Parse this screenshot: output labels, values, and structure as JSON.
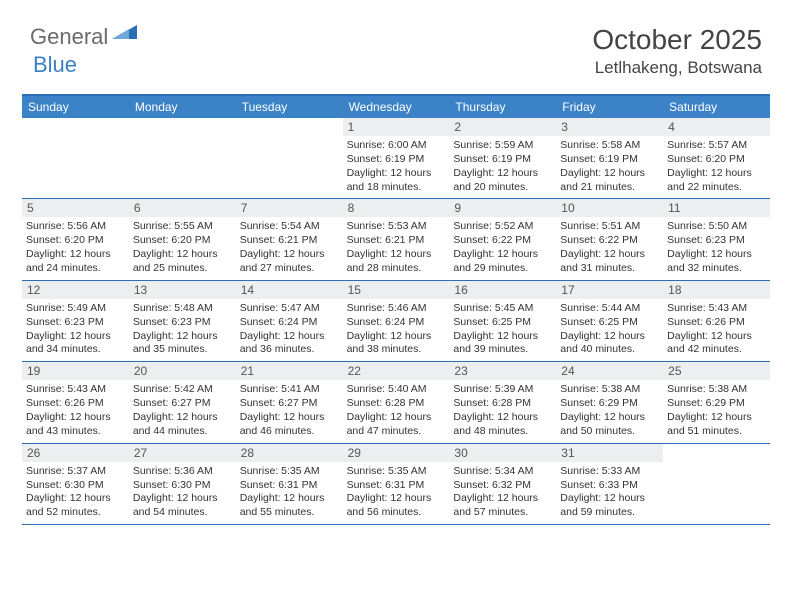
{
  "logo": {
    "general": "General",
    "blue": "Blue"
  },
  "title": "October 2025",
  "location": "Letlhakeng, Botswana",
  "colors": {
    "header_bg": "#3b82c7",
    "border": "#2a6fb5",
    "daybar": "#eceef0",
    "logo_gray": "#6b6b6b",
    "logo_blue": "#3b7fc4"
  },
  "weekdays": [
    "Sunday",
    "Monday",
    "Tuesday",
    "Wednesday",
    "Thursday",
    "Friday",
    "Saturday"
  ],
  "weeks": [
    [
      {
        "blank": true
      },
      {
        "blank": true
      },
      {
        "blank": true
      },
      {
        "day": "1",
        "sunrise": "6:00 AM",
        "sunset": "6:19 PM",
        "daylight": "12 hours and 18 minutes."
      },
      {
        "day": "2",
        "sunrise": "5:59 AM",
        "sunset": "6:19 PM",
        "daylight": "12 hours and 20 minutes."
      },
      {
        "day": "3",
        "sunrise": "5:58 AM",
        "sunset": "6:19 PM",
        "daylight": "12 hours and 21 minutes."
      },
      {
        "day": "4",
        "sunrise": "5:57 AM",
        "sunset": "6:20 PM",
        "daylight": "12 hours and 22 minutes."
      }
    ],
    [
      {
        "day": "5",
        "sunrise": "5:56 AM",
        "sunset": "6:20 PM",
        "daylight": "12 hours and 24 minutes."
      },
      {
        "day": "6",
        "sunrise": "5:55 AM",
        "sunset": "6:20 PM",
        "daylight": "12 hours and 25 minutes."
      },
      {
        "day": "7",
        "sunrise": "5:54 AM",
        "sunset": "6:21 PM",
        "daylight": "12 hours and 27 minutes."
      },
      {
        "day": "8",
        "sunrise": "5:53 AM",
        "sunset": "6:21 PM",
        "daylight": "12 hours and 28 minutes."
      },
      {
        "day": "9",
        "sunrise": "5:52 AM",
        "sunset": "6:22 PM",
        "daylight": "12 hours and 29 minutes."
      },
      {
        "day": "10",
        "sunrise": "5:51 AM",
        "sunset": "6:22 PM",
        "daylight": "12 hours and 31 minutes."
      },
      {
        "day": "11",
        "sunrise": "5:50 AM",
        "sunset": "6:23 PM",
        "daylight": "12 hours and 32 minutes."
      }
    ],
    [
      {
        "day": "12",
        "sunrise": "5:49 AM",
        "sunset": "6:23 PM",
        "daylight": "12 hours and 34 minutes."
      },
      {
        "day": "13",
        "sunrise": "5:48 AM",
        "sunset": "6:23 PM",
        "daylight": "12 hours and 35 minutes."
      },
      {
        "day": "14",
        "sunrise": "5:47 AM",
        "sunset": "6:24 PM",
        "daylight": "12 hours and 36 minutes."
      },
      {
        "day": "15",
        "sunrise": "5:46 AM",
        "sunset": "6:24 PM",
        "daylight": "12 hours and 38 minutes."
      },
      {
        "day": "16",
        "sunrise": "5:45 AM",
        "sunset": "6:25 PM",
        "daylight": "12 hours and 39 minutes."
      },
      {
        "day": "17",
        "sunrise": "5:44 AM",
        "sunset": "6:25 PM",
        "daylight": "12 hours and 40 minutes."
      },
      {
        "day": "18",
        "sunrise": "5:43 AM",
        "sunset": "6:26 PM",
        "daylight": "12 hours and 42 minutes."
      }
    ],
    [
      {
        "day": "19",
        "sunrise": "5:43 AM",
        "sunset": "6:26 PM",
        "daylight": "12 hours and 43 minutes."
      },
      {
        "day": "20",
        "sunrise": "5:42 AM",
        "sunset": "6:27 PM",
        "daylight": "12 hours and 44 minutes."
      },
      {
        "day": "21",
        "sunrise": "5:41 AM",
        "sunset": "6:27 PM",
        "daylight": "12 hours and 46 minutes."
      },
      {
        "day": "22",
        "sunrise": "5:40 AM",
        "sunset": "6:28 PM",
        "daylight": "12 hours and 47 minutes."
      },
      {
        "day": "23",
        "sunrise": "5:39 AM",
        "sunset": "6:28 PM",
        "daylight": "12 hours and 48 minutes."
      },
      {
        "day": "24",
        "sunrise": "5:38 AM",
        "sunset": "6:29 PM",
        "daylight": "12 hours and 50 minutes."
      },
      {
        "day": "25",
        "sunrise": "5:38 AM",
        "sunset": "6:29 PM",
        "daylight": "12 hours and 51 minutes."
      }
    ],
    [
      {
        "day": "26",
        "sunrise": "5:37 AM",
        "sunset": "6:30 PM",
        "daylight": "12 hours and 52 minutes."
      },
      {
        "day": "27",
        "sunrise": "5:36 AM",
        "sunset": "6:30 PM",
        "daylight": "12 hours and 54 minutes."
      },
      {
        "day": "28",
        "sunrise": "5:35 AM",
        "sunset": "6:31 PM",
        "daylight": "12 hours and 55 minutes."
      },
      {
        "day": "29",
        "sunrise": "5:35 AM",
        "sunset": "6:31 PM",
        "daylight": "12 hours and 56 minutes."
      },
      {
        "day": "30",
        "sunrise": "5:34 AM",
        "sunset": "6:32 PM",
        "daylight": "12 hours and 57 minutes."
      },
      {
        "day": "31",
        "sunrise": "5:33 AM",
        "sunset": "6:33 PM",
        "daylight": "12 hours and 59 minutes."
      },
      {
        "blank": true
      }
    ]
  ],
  "labels": {
    "sunrise": "Sunrise:",
    "sunset": "Sunset:",
    "daylight": "Daylight:"
  }
}
